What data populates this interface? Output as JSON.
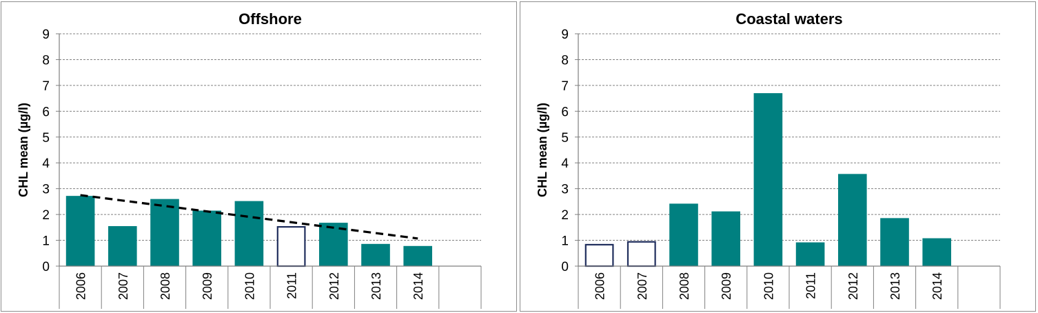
{
  "chart_data": [
    {
      "type": "bar",
      "title": "Offshore",
      "ylabel": "CHL mean (µg/l)",
      "xlabel": "",
      "ylim": [
        0,
        9
      ],
      "yticks": [
        0,
        1,
        2,
        3,
        4,
        5,
        6,
        7,
        8,
        9
      ],
      "grid": true,
      "categories": [
        "2006",
        "2007",
        "2008",
        "2009",
        "2010",
        "2011",
        "2012",
        "2013",
        "2014"
      ],
      "values": [
        2.72,
        1.55,
        2.6,
        2.15,
        2.52,
        1.52,
        1.68,
        0.86,
        0.78
      ],
      "hollow": [
        false,
        false,
        false,
        false,
        false,
        true,
        false,
        false,
        false
      ],
      "trendline": {
        "style": "dashed",
        "start": {
          "x": "2006",
          "y": 2.75
        },
        "end": {
          "x": "2014",
          "y": 1.07
        }
      },
      "colors": {
        "bar": "#008080",
        "hollow_outline": "#1f2d5c",
        "grid": "#808080",
        "trend": "#000000"
      }
    },
    {
      "type": "bar",
      "title": "Coastal waters",
      "ylabel": "CHL mean (µg/l)",
      "xlabel": "",
      "ylim": [
        0,
        9
      ],
      "yticks": [
        0,
        1,
        2,
        3,
        4,
        5,
        6,
        7,
        8,
        9
      ],
      "grid": true,
      "categories": [
        "2006",
        "2007",
        "2008",
        "2009",
        "2010",
        "2011",
        "2012",
        "2013",
        "2014"
      ],
      "values": [
        0.83,
        0.94,
        2.42,
        2.12,
        6.7,
        0.92,
        3.57,
        1.86,
        1.08
      ],
      "hollow": [
        true,
        true,
        false,
        false,
        false,
        false,
        false,
        false,
        false
      ],
      "colors": {
        "bar": "#008080",
        "hollow_outline": "#1f2d5c",
        "grid": "#808080"
      }
    }
  ]
}
